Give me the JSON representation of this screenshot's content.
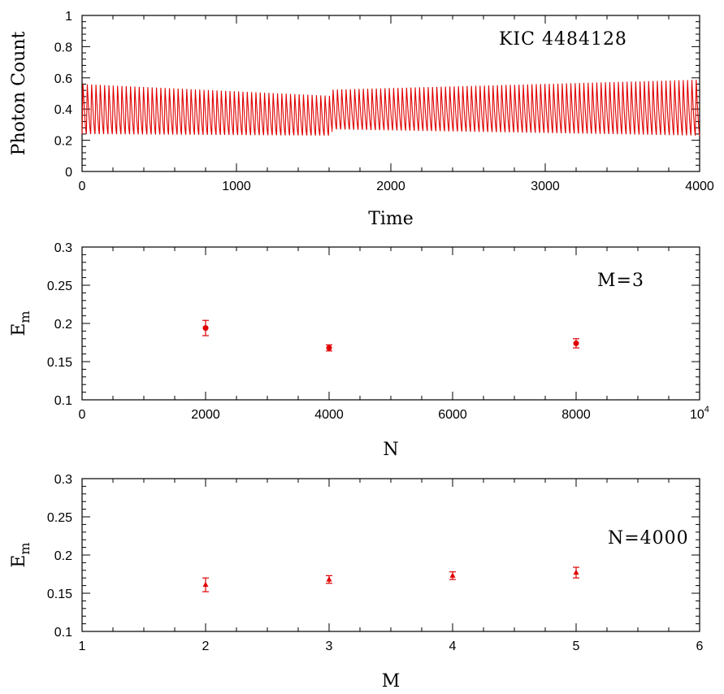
{
  "chart_data": [
    {
      "type": "line",
      "annotation": "KIC 4484128",
      "xlabel": "Time",
      "ylabel": "Photon Count",
      "xlim": [
        0,
        4000
      ],
      "ylim": [
        0,
        1
      ],
      "xticks": [
        0,
        1000,
        2000,
        3000,
        4000
      ],
      "xtick_labels": [
        "0",
        "1000",
        "2000",
        "3000",
        "4000"
      ],
      "yticks": [
        0,
        0.2,
        0.4,
        0.6,
        0.8,
        1
      ],
      "ytick_labels": [
        "0",
        "0.2",
        "0.4",
        "0.6",
        "0.8",
        "1"
      ],
      "color": "#e00000",
      "series": [
        {
          "oscillation_period": 28,
          "segments": [
            {
              "x_start": 0,
              "x_end": 1620,
              "min_start": 0.24,
              "min_end": 0.23,
              "max_start": 0.58,
              "max_end": 0.5
            },
            {
              "x_start": 1620,
              "x_end": 4000,
              "min_start": 0.27,
              "min_end": 0.23,
              "max_start": 0.54,
              "max_end": 0.61
            }
          ]
        }
      ],
      "grid": false
    },
    {
      "type": "scatter",
      "annotation": "M=3",
      "xlabel": "N",
      "ylabel": "E",
      "ylabel_sub": "m",
      "xlim": [
        0,
        10000
      ],
      "ylim": [
        0.1,
        0.3
      ],
      "xticks": [
        0,
        2000,
        4000,
        6000,
        8000,
        10000
      ],
      "xtick_labels": [
        "0",
        "2000",
        "4000",
        "6000",
        "8000",
        ""
      ],
      "x_exponent_label": "10",
      "x_exponent_power": "4",
      "yticks": [
        0.1,
        0.15,
        0.2,
        0.25,
        0.3
      ],
      "ytick_labels": [
        "0.1",
        "0.15",
        "0.2",
        "0.25",
        "0.3"
      ],
      "marker": "circle",
      "color": "#e00000",
      "series": [
        {
          "x": [
            2000,
            4000,
            8000
          ],
          "y": [
            0.194,
            0.168,
            0.174
          ],
          "yerr": [
            0.01,
            0.004,
            0.006
          ]
        }
      ],
      "grid": false
    },
    {
      "type": "scatter",
      "annotation": "N=4000",
      "xlabel": "M",
      "ylabel": "E",
      "ylabel_sub": "m",
      "xlim": [
        1,
        6
      ],
      "ylim": [
        0.1,
        0.3
      ],
      "xticks": [
        1,
        2,
        3,
        4,
        5,
        6
      ],
      "xtick_labels": [
        "1",
        "2",
        "3",
        "4",
        "5",
        "6"
      ],
      "yticks": [
        0.1,
        0.15,
        0.2,
        0.25,
        0.3
      ],
      "ytick_labels": [
        "0.1",
        "0.15",
        "0.2",
        "0.25",
        "0.3"
      ],
      "marker": "triangle",
      "color": "#e00000",
      "series": [
        {
          "x": [
            2,
            3,
            4,
            5
          ],
          "y": [
            0.161,
            0.168,
            0.173,
            0.177
          ],
          "yerr": [
            0.009,
            0.005,
            0.005,
            0.007
          ]
        }
      ],
      "grid": false
    }
  ]
}
